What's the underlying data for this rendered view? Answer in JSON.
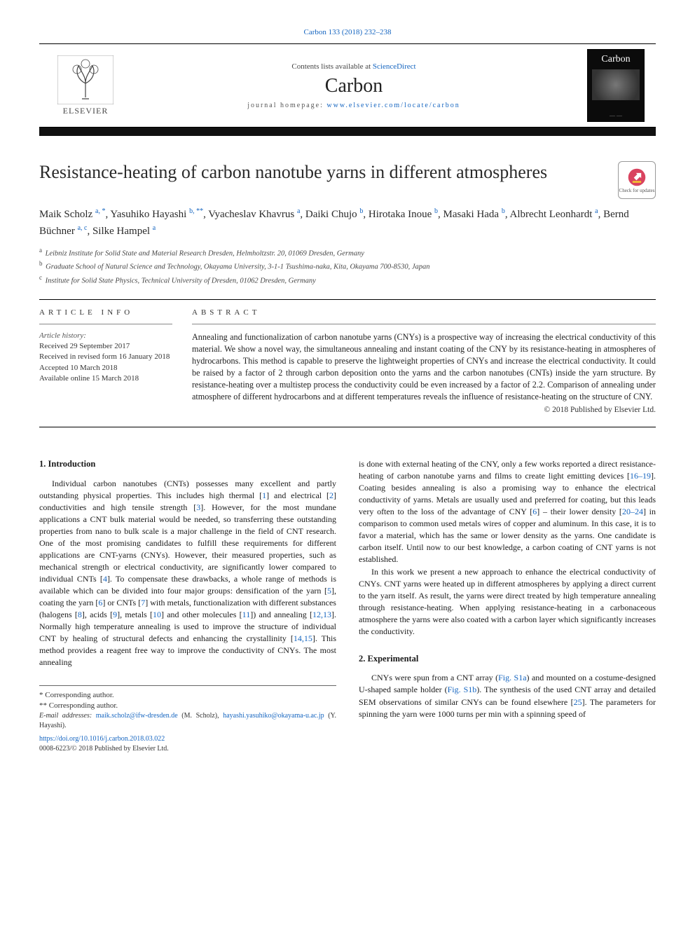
{
  "citation": "Carbon 133 (2018) 232–238",
  "banner": {
    "contents_prefix": "Contents lists available at ",
    "contents_link": "ScienceDirect",
    "journal": "Carbon",
    "homepage_prefix": "journal homepage: ",
    "homepage_link": "www.elsevier.com/locate/carbon",
    "publisher": "ELSEVIER",
    "cover_title": "Carbon"
  },
  "title": "Resistance-heating of carbon nanotube yarns in different atmospheres",
  "check_updates": "Check for updates",
  "authors": [
    {
      "name": "Maik Scholz",
      "aff": "a",
      "stars": "*"
    },
    {
      "name": "Yasuhiko Hayashi",
      "aff": "b",
      "stars": "**"
    },
    {
      "name": "Vyacheslav Khavrus",
      "aff": "a"
    },
    {
      "name": "Daiki Chujo",
      "aff": "b"
    },
    {
      "name": "Hirotaka Inoue",
      "aff": "b"
    },
    {
      "name": "Masaki Hada",
      "aff": "b"
    },
    {
      "name": "Albrecht Leonhardt",
      "aff": "a"
    },
    {
      "name": "Bernd Büchner",
      "aff": "a, c"
    },
    {
      "name": "Silke Hampel",
      "aff": "a"
    }
  ],
  "affiliations": [
    {
      "label": "a",
      "text": "Leibniz Institute for Solid State and Material Research Dresden, Helmholtzstr. 20, 01069 Dresden, Germany"
    },
    {
      "label": "b",
      "text": "Graduate School of Natural Science and Technology, Okayama University, 3-1-1 Tsushima-naka, Kita, Okayama 700-8530, Japan"
    },
    {
      "label": "c",
      "text": "Institute for Solid State Physics, Technical University of Dresden, 01062 Dresden, Germany"
    }
  ],
  "article_info_head": "ARTICLE INFO",
  "history_head": "Article history:",
  "history": [
    "Received 29 September 2017",
    "Received in revised form 16 January 2018",
    "Accepted 10 March 2018",
    "Available online 15 March 2018"
  ],
  "abstract_head": "ABSTRACT",
  "abstract": "Annealing and functionalization of carbon nanotube yarns (CNYs) is a prospective way of increasing the electrical conductivity of this material. We show a novel way, the simultaneous annealing and instant coating of the CNY by its resistance-heating in atmospheres of hydrocarbons. This method is capable to preserve the lightweight properties of CNYs and increase the electrical conductivity. It could be raised by a factor of 2 through carbon deposition onto the yarns and the carbon nanotubes (CNTs) inside the yarn structure. By resistance-heating over a multistep process the conductivity could be even increased by a factor of 2.2. Comparison of annealing under atmosphere of different hydrocarbons and at different temperatures reveals the influence of resistance-heating on the structure of CNY.",
  "abstract_copyright": "© 2018 Published by Elsevier Ltd.",
  "sections": {
    "intro_head": "1. Introduction",
    "intro_p1_a": "Individual carbon nanotubes (CNTs) possesses many excellent and partly outstanding physical properties. This includes high thermal [",
    "intro_p1_b": "] and electrical [",
    "intro_p1_c": "] conductivities and high tensile strength [",
    "intro_p1_d": "]. However, for the most mundane applications a CNT bulk material would be needed, so transferring these outstanding properties from nano to bulk scale is a major challenge in the field of CNT research. One of the most promising candidates to fulfill these requirements for different applications are CNT-yarns (CNYs). However, their measured properties, such as mechanical strength or electrical conductivity, are significantly lower compared to individual CNTs [",
    "intro_p1_e": "]. To compensate these drawbacks, a whole range of methods is available which can be divided into four major groups: densification of the yarn [",
    "intro_p1_f": "], coating the yarn [",
    "intro_p1_g": "] or CNTs [",
    "intro_p1_h": "] with metals, functionalization with different substances (halogens [",
    "intro_p1_i": "], acids [",
    "intro_p1_j": "], metals [",
    "intro_p1_k": "] and other molecules [",
    "intro_p1_l": "]) and annealing [",
    "intro_p1_m": "]. Normally high temperature annealing is used to improve the structure of individual CNT by healing of structural defects and enhancing the crystallinity [",
    "intro_p1_n": "]. This method provides a reagent free way to improve the conductivity of CNYs. The most annealing ",
    "col2_p1_a": "is done with external heating of the CNY, only a few works reported a direct resistance-heating of carbon nanotube yarns and films to create light emitting devices [",
    "col2_p1_b": "]. Coating besides annealing is also a promising way to enhance the electrical conductivity of yarns. Metals are usually used and preferred for coating, but this leads very often to the loss of the advantage of CNY [",
    "col2_p1_c": "] – their lower density [",
    "col2_p1_d": "] in comparison to common used metals wires of copper and aluminum. In this case, it is to favor a material, which has the same or lower density as the yarns. One candidate is carbon itself. Until now to our best knowledge, a carbon coating of CNT yarns is not established.",
    "col2_p2": "In this work we present a new approach to enhance the electrical conductivity of CNYs. CNT yarns were heated up in different atmospheres by applying a direct current to the yarn itself. As result, the yarns were direct treated by high temperature annealing through resistance-heating. When applying resistance-heating in a carbonaceous atmosphere the yarns were also coated with a carbon layer which significantly increases the conductivity.",
    "exp_head": "2. Experimental",
    "exp_p1_a": "CNYs were spun from a CNT array (",
    "exp_p1_b": ") and mounted on a costume-designed U-shaped sample holder (",
    "exp_p1_c": "). The synthesis of the used CNT array and detailed SEM observations of similar CNYs can be found elsewhere [",
    "exp_p1_d": "]. The parameters for spinning the yarn were 1000 turns per min with a spinning speed of"
  },
  "refs": {
    "r1": "1",
    "r2": "2",
    "r3": "3",
    "r4": "4",
    "r5": "5",
    "r6": "6",
    "r7": "7",
    "r8": "8",
    "r9": "9",
    "r10": "10",
    "r11": "11",
    "r1213": "12,13",
    "r1415": "14,15",
    "r1619": "16–19",
    "r2024": "20–24",
    "r25": "25",
    "figS1a": "Fig. S1a",
    "figS1b": "Fig. S1b"
  },
  "footnotes": {
    "corr1": "* Corresponding author.",
    "corr2": "** Corresponding author.",
    "email_label": "E-mail addresses: ",
    "email1": "maik.scholz@ifw-dresden.de",
    "email1_sfx": " (M. Scholz), ",
    "email2": "hayashi.yasuhiko@okayama-u.ac.jp",
    "email2_sfx": " (Y. Hayashi)."
  },
  "doi": "https://doi.org/10.1016/j.carbon.2018.03.022",
  "issn": "0008-6223/© 2018 Published by Elsevier Ltd.",
  "colors": {
    "link": "#1565c0",
    "text": "#1a1a1a",
    "rule": "#000000"
  }
}
